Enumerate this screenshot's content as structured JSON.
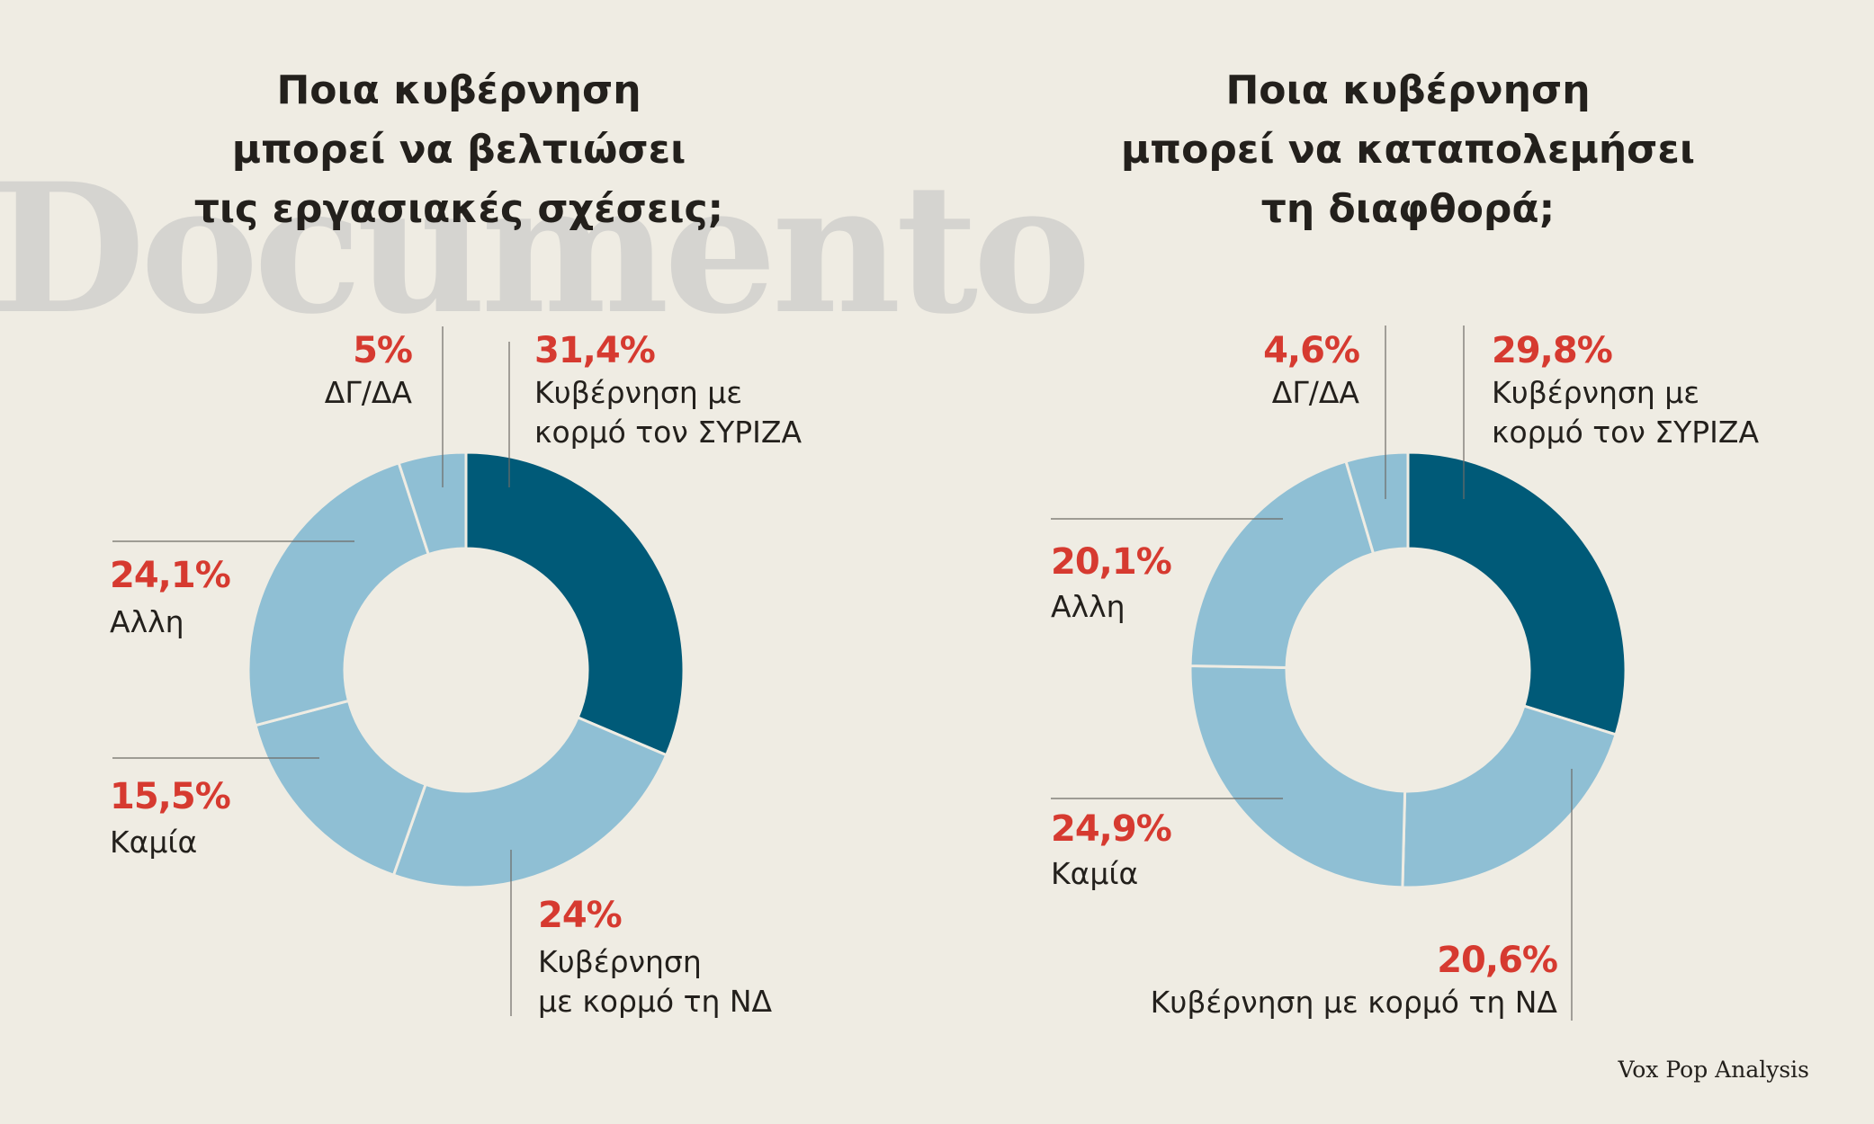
{
  "watermark": "Documento",
  "source": "Vox Pop Analysis",
  "colors": {
    "highlight": "#005a78",
    "light": "#8fbfd4",
    "pct": "#d63a30",
    "background": "#efece3"
  },
  "chart_data": [
    {
      "type": "donut",
      "title_lines": [
        "Ποια κυβέρνηση",
        "μπορεί να βελτιώσει",
        "τις εργασιακές σχέσεις;"
      ],
      "slices": [
        {
          "pct_label": "31,4%",
          "value": 31.4,
          "label_lines": [
            "Κυβέρνηση με",
            "κορμό τον ΣΥΡΙΖΑ"
          ],
          "highlight": true
        },
        {
          "pct_label": "24%",
          "value": 24,
          "label_lines": [
            "Κυβέρνηση",
            "με κορμό τη ΝΔ"
          ],
          "highlight": false
        },
        {
          "pct_label": "15,5%",
          "value": 15.5,
          "label_lines": [
            "Καμία"
          ],
          "highlight": false
        },
        {
          "pct_label": "24,1%",
          "value": 24.1,
          "label_lines": [
            "Αλλη"
          ],
          "highlight": false
        },
        {
          "pct_label": "5%",
          "value": 5,
          "label_lines": [
            "ΔΓ/ΔΑ"
          ],
          "highlight": false
        }
      ]
    },
    {
      "type": "donut",
      "title_lines": [
        "Ποια κυβέρνηση",
        "μπορεί να καταπολεμήσει",
        "τη διαφθορά;"
      ],
      "slices": [
        {
          "pct_label": "29,8%",
          "value": 29.8,
          "label_lines": [
            "Κυβέρνηση με",
            "κορμό τον ΣΥΡΙΖΑ"
          ],
          "highlight": true
        },
        {
          "pct_label": "20,6%",
          "value": 20.6,
          "label_lines": [
            "Κυβέρνηση με κορμό τη ΝΔ"
          ],
          "highlight": false
        },
        {
          "pct_label": "24,9%",
          "value": 24.9,
          "label_lines": [
            "Καμία"
          ],
          "highlight": false
        },
        {
          "pct_label": "20,1%",
          "value": 20.1,
          "label_lines": [
            "Αλλη"
          ],
          "highlight": false
        },
        {
          "pct_label": "4,6%",
          "value": 4.6,
          "label_lines": [
            "ΔΓ/ΔΑ"
          ],
          "highlight": false
        }
      ]
    }
  ]
}
